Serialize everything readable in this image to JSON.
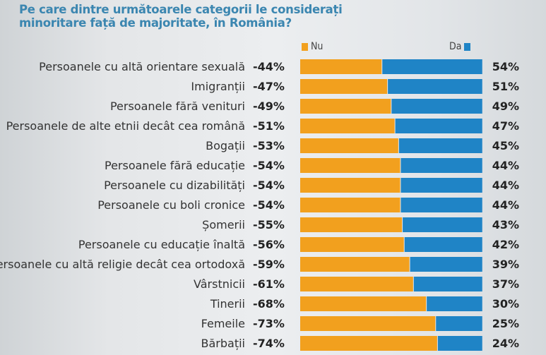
{
  "chart_data": {
    "type": "bar",
    "orientation": "horizontal-stacked",
    "title": "Pe care dintre următoarele categorii le considerați minoritare față de majoritate, în România?",
    "categories": [
      "Persoanele cu altă orientare sexuală",
      "Imigranții",
      "Persoanele fără venituri",
      "Persoanele de alte etnii decât cea română",
      "Bogații",
      "Persoanele fără educație",
      "Persoanele cu dizabilități",
      "Persoanele cu boli cronice",
      "Șomerii",
      "Persoanele cu educație înaltă",
      "Persoanele cu altă religie decât cea ortodoxă",
      "Vârstnicii",
      "Tinerii",
      "Femeile",
      "Bărbații"
    ],
    "series": [
      {
        "name": "Nu",
        "color": "#f2a01e",
        "values": [
          -44,
          -47,
          -49,
          -51,
          -53,
          -54,
          -54,
          -54,
          -55,
          -56,
          -59,
          -61,
          -68,
          -73,
          -74
        ]
      },
      {
        "name": "Da",
        "color": "#1f84c6",
        "values": [
          54,
          51,
          49,
          47,
          45,
          44,
          44,
          44,
          43,
          42,
          39,
          37,
          30,
          25,
          24
        ]
      }
    ],
    "unit": "%",
    "legend": "top"
  }
}
